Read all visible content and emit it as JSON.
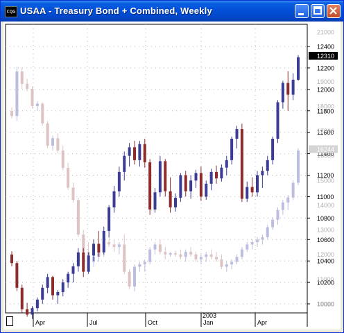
{
  "window": {
    "title": "USAA - Treasury Bond + Combined, Weekly",
    "icon": "chart-app-icon",
    "icon_text": "CQG"
  },
  "chart_data": {
    "type": "candlestick",
    "title": "USAA - Treasury Bond + Combined, Weekly",
    "x_labels": [
      "Apr",
      "Jul",
      "Oct",
      "Jan",
      "Apr"
    ],
    "year_label": "2003",
    "y_right_black": [
      "12400",
      "12200",
      "12000",
      "11800",
      "11600",
      "11400",
      "11200",
      "11000",
      "10800",
      "10600",
      "10400",
      "10200",
      "10000"
    ],
    "y_right_gray": [
      "21000",
      "20000",
      "19000",
      "18000",
      "17000",
      "16000",
      "15000",
      "14000",
      "13000",
      "12000",
      "11000",
      "10000"
    ],
    "last_price_usaa": "12310",
    "last_price_bond": "16244",
    "series": [
      {
        "name": "USAA",
        "values": [
          [
            10460,
            10490,
            10350,
            10380
          ],
          [
            10380,
            10400,
            10120,
            10150
          ],
          [
            10150,
            10180,
            9920,
            9950
          ],
          [
            9950,
            10010,
            9880,
            9900
          ],
          [
            9900,
            9980,
            9860,
            9960
          ],
          [
            9960,
            10060,
            9930,
            10040
          ],
          [
            10040,
            10180,
            10000,
            10150
          ],
          [
            10150,
            10280,
            10100,
            10250
          ],
          [
            10250,
            10260,
            10040,
            10080
          ],
          [
            10080,
            10130,
            10000,
            10110
          ],
          [
            10110,
            10230,
            10070,
            10200
          ],
          [
            10200,
            10300,
            10150,
            10280
          ],
          [
            10280,
            10380,
            10200,
            10350
          ],
          [
            10350,
            10520,
            10300,
            10480
          ],
          [
            10480,
            10520,
            10250,
            10300
          ],
          [
            10300,
            10480,
            10280,
            10450
          ],
          [
            10450,
            10600,
            10400,
            10560
          ],
          [
            10560,
            10680,
            10440,
            10480
          ],
          [
            10480,
            10720,
            10460,
            10680
          ],
          [
            10680,
            10920,
            10620,
            10900
          ],
          [
            10900,
            11100,
            10850,
            11050
          ],
          [
            11050,
            11280,
            11000,
            11230
          ],
          [
            11230,
            11420,
            11150,
            11380
          ],
          [
            11380,
            11500,
            11280,
            11460
          ],
          [
            11460,
            11520,
            11300,
            11340
          ],
          [
            11340,
            11520,
            11280,
            11490
          ],
          [
            11490,
            11540,
            11270,
            11320
          ],
          [
            11320,
            11350,
            10830,
            10880
          ],
          [
            10880,
            11080,
            10850,
            11040
          ],
          [
            11040,
            11380,
            11000,
            11330
          ],
          [
            11330,
            11350,
            11000,
            11050
          ],
          [
            11050,
            11180,
            10850,
            10900
          ],
          [
            10900,
            11030,
            10860,
            10990
          ],
          [
            10990,
            11220,
            10950,
            11200
          ],
          [
            11200,
            11240,
            11000,
            11050
          ],
          [
            11050,
            11200,
            10980,
            11150
          ],
          [
            11150,
            11250,
            11080,
            11220
          ],
          [
            11220,
            11280,
            10960,
            11000
          ],
          [
            11000,
            11150,
            10970,
            11120
          ],
          [
            11120,
            11260,
            11060,
            11230
          ],
          [
            11230,
            11290,
            11120,
            11170
          ],
          [
            11170,
            11300,
            11140,
            11270
          ],
          [
            11270,
            11380,
            11200,
            11340
          ],
          [
            11340,
            11560,
            11300,
            11540
          ],
          [
            11540,
            11660,
            11450,
            11630
          ],
          [
            11630,
            11680,
            10950,
            10980
          ],
          [
            10980,
            11140,
            10950,
            11090
          ],
          [
            11090,
            11180,
            11000,
            11040
          ],
          [
            11040,
            11240,
            11000,
            11200
          ],
          [
            11200,
            11280,
            11080,
            11240
          ],
          [
            11240,
            11380,
            11200,
            11340
          ],
          [
            11340,
            11560,
            11300,
            11540
          ],
          [
            11540,
            11900,
            11500,
            11880
          ],
          [
            11880,
            12080,
            11820,
            12060
          ],
          [
            12060,
            12170,
            11800,
            11950
          ],
          [
            11950,
            12150,
            11900,
            12090
          ],
          [
            12090,
            12320,
            12080,
            12300
          ]
        ]
      },
      {
        "name": "Treasury Bond",
        "values": [
          [
            17800,
            17950,
            17500,
            17600
          ],
          [
            17600,
            19600,
            17400,
            19400
          ],
          [
            19400,
            19550,
            18700,
            18900
          ],
          [
            18900,
            19100,
            18600,
            18700
          ],
          [
            18700,
            18800,
            17900,
            18000
          ],
          [
            18000,
            18200,
            17800,
            18100
          ],
          [
            18100,
            18150,
            17200,
            17300
          ],
          [
            17300,
            17400,
            16300,
            16400
          ],
          [
            16400,
            16800,
            16200,
            16700
          ],
          [
            16700,
            16900,
            16100,
            16200
          ],
          [
            16200,
            16400,
            15400,
            15500
          ],
          [
            15500,
            15700,
            14600,
            14700
          ],
          [
            14700,
            14900,
            14100,
            14200
          ],
          [
            14200,
            14300,
            12700,
            12800
          ],
          [
            12800,
            13000,
            12000,
            12100
          ],
          [
            12100,
            12500,
            11600,
            11700
          ],
          [
            11700,
            12000,
            11500,
            11900
          ],
          [
            11900,
            12200,
            11700,
            12100
          ],
          [
            12100,
            12600,
            11900,
            12500
          ],
          [
            12500,
            12700,
            12300,
            12400
          ],
          [
            12400,
            12600,
            12100,
            12300
          ],
          [
            12300,
            12500,
            12000,
            12400
          ],
          [
            12400,
            12800,
            11200,
            11300
          ],
          [
            11300,
            11400,
            10600,
            10700
          ],
          [
            10700,
            11600,
            10500,
            11500
          ],
          [
            11500,
            11700,
            11300,
            11600
          ],
          [
            11600,
            11800,
            11300,
            11700
          ],
          [
            11700,
            12300,
            11600,
            12200
          ],
          [
            12200,
            12500,
            12000,
            12400
          ],
          [
            12400,
            12600,
            12000,
            12100
          ],
          [
            12100,
            12300,
            11800,
            12000
          ],
          [
            12000,
            12100,
            11900,
            12050
          ],
          [
            12050,
            12150,
            11900,
            12000
          ],
          [
            12000,
            12200,
            11800,
            11900
          ],
          [
            11900,
            12200,
            11700,
            12100
          ],
          [
            12100,
            12300,
            11900,
            12000
          ],
          [
            12000,
            12100,
            11700,
            11800
          ],
          [
            11800,
            12000,
            11600,
            11900
          ],
          [
            11900,
            12100,
            11700,
            12000
          ],
          [
            12000,
            12200,
            11800,
            11900
          ],
          [
            11900,
            12100,
            11700,
            11800
          ],
          [
            11800,
            12000,
            11400,
            11500
          ],
          [
            11500,
            11700,
            11300,
            11600
          ],
          [
            11600,
            11800,
            11400,
            11700
          ],
          [
            11700,
            12000,
            11600,
            11900
          ],
          [
            11900,
            12300,
            11800,
            12200
          ],
          [
            12200,
            12500,
            12100,
            12400
          ],
          [
            12400,
            12600,
            12200,
            12500
          ],
          [
            12500,
            12700,
            12300,
            12600
          ],
          [
            12600,
            12800,
            12400,
            12700
          ],
          [
            12700,
            13200,
            12600,
            13100
          ],
          [
            13100,
            13500,
            13000,
            13400
          ],
          [
            13400,
            13900,
            13200,
            13800
          ],
          [
            13800,
            14200,
            13600,
            14100
          ],
          [
            14100,
            14400,
            13800,
            14300
          ],
          [
            14300,
            15000,
            14200,
            14900
          ],
          [
            14900,
            16300,
            14800,
            16200
          ]
        ]
      }
    ]
  },
  "colors": {
    "titlebar": "#0a5fe0",
    "up": "#3c3c94",
    "down": "#8c2c2c",
    "bond_up": "#bdbddf",
    "bond_down": "#ddc3c3",
    "gridline": "#b4b4b4"
  }
}
